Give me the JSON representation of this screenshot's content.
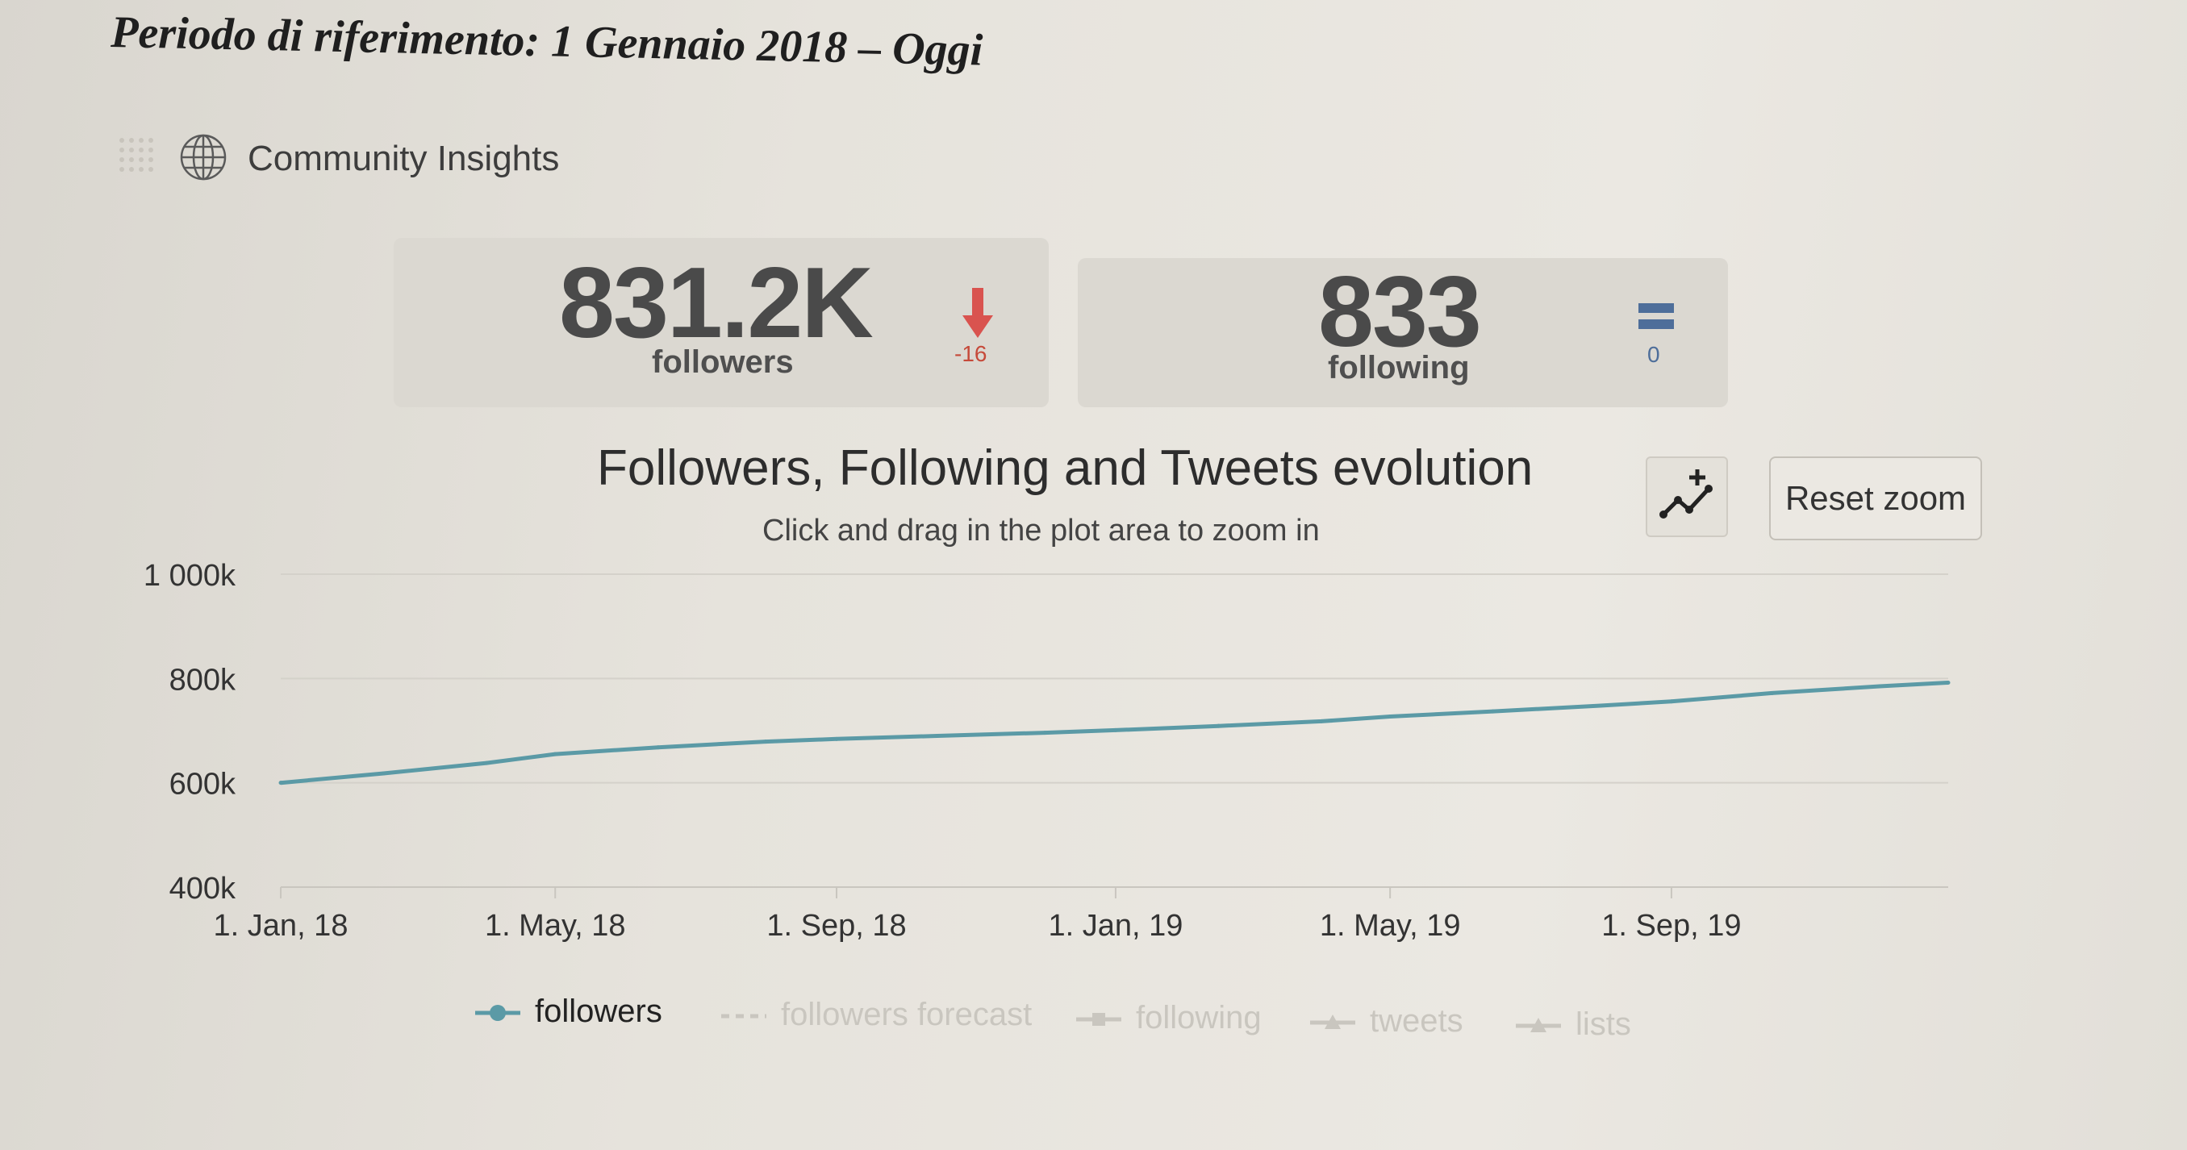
{
  "header": {
    "period": "Periodo di riferimento: 1 Gennaio 2018 – Oggi",
    "section_title": "Community Insights"
  },
  "stats": {
    "followers": {
      "value": "831.2K",
      "label": "followers",
      "delta": "-16",
      "trend_icon": "arrow-down-icon",
      "color": "#d9534f"
    },
    "following": {
      "value": "833",
      "label": "following",
      "delta": "0",
      "trend_icon": "equal-icon",
      "color": "#4e6e9a"
    }
  },
  "toolbar": {
    "zoom_icon": "chart-zoom-icon",
    "reset_zoom_label": "Reset zoom"
  },
  "chart_data": {
    "type": "line",
    "title": "Followers, Following and Tweets evolution",
    "subtitle": "Click and drag in the plot area to zoom in",
    "ylim": [
      400000,
      1000000
    ],
    "y_ticks": [
      "1 000k",
      "800k",
      "600k",
      "400k"
    ],
    "x_ticks": [
      "1. Jan, 18",
      "1. May, 18",
      "1. Sep, 18",
      "1. Jan, 19",
      "1. May, 19",
      "1. Sep, 19"
    ],
    "grid": true,
    "legend_position": "bottom",
    "series": [
      {
        "name": "followers",
        "color": "#5b9aa6",
        "points": [
          [
            "2018-01-01",
            600000
          ],
          [
            "2018-02-15",
            618000
          ],
          [
            "2018-04-01",
            638000
          ],
          [
            "2018-05-01",
            655000
          ],
          [
            "2018-06-15",
            668000
          ],
          [
            "2018-08-01",
            679000
          ],
          [
            "2018-09-01",
            684000
          ],
          [
            "2018-10-15",
            690000
          ],
          [
            "2018-12-01",
            696000
          ],
          [
            "2019-01-01",
            701000
          ],
          [
            "2019-02-15",
            709000
          ],
          [
            "2019-04-01",
            718000
          ],
          [
            "2019-05-01",
            727000
          ],
          [
            "2019-06-15",
            737000
          ],
          [
            "2019-08-01",
            748000
          ],
          [
            "2019-09-01",
            756000
          ],
          [
            "2019-10-15",
            772000
          ],
          [
            "2019-12-01",
            785000
          ],
          [
            "2019-12-31",
            792000
          ]
        ]
      },
      {
        "name": "followers forecast",
        "color": "#c9c6bf",
        "points": []
      },
      {
        "name": "following",
        "color": "#c9c6bf",
        "points": []
      },
      {
        "name": "tweets",
        "color": "#c9c6bf",
        "points": []
      },
      {
        "name": "lists",
        "color": "#c9c6bf",
        "points": []
      }
    ]
  }
}
